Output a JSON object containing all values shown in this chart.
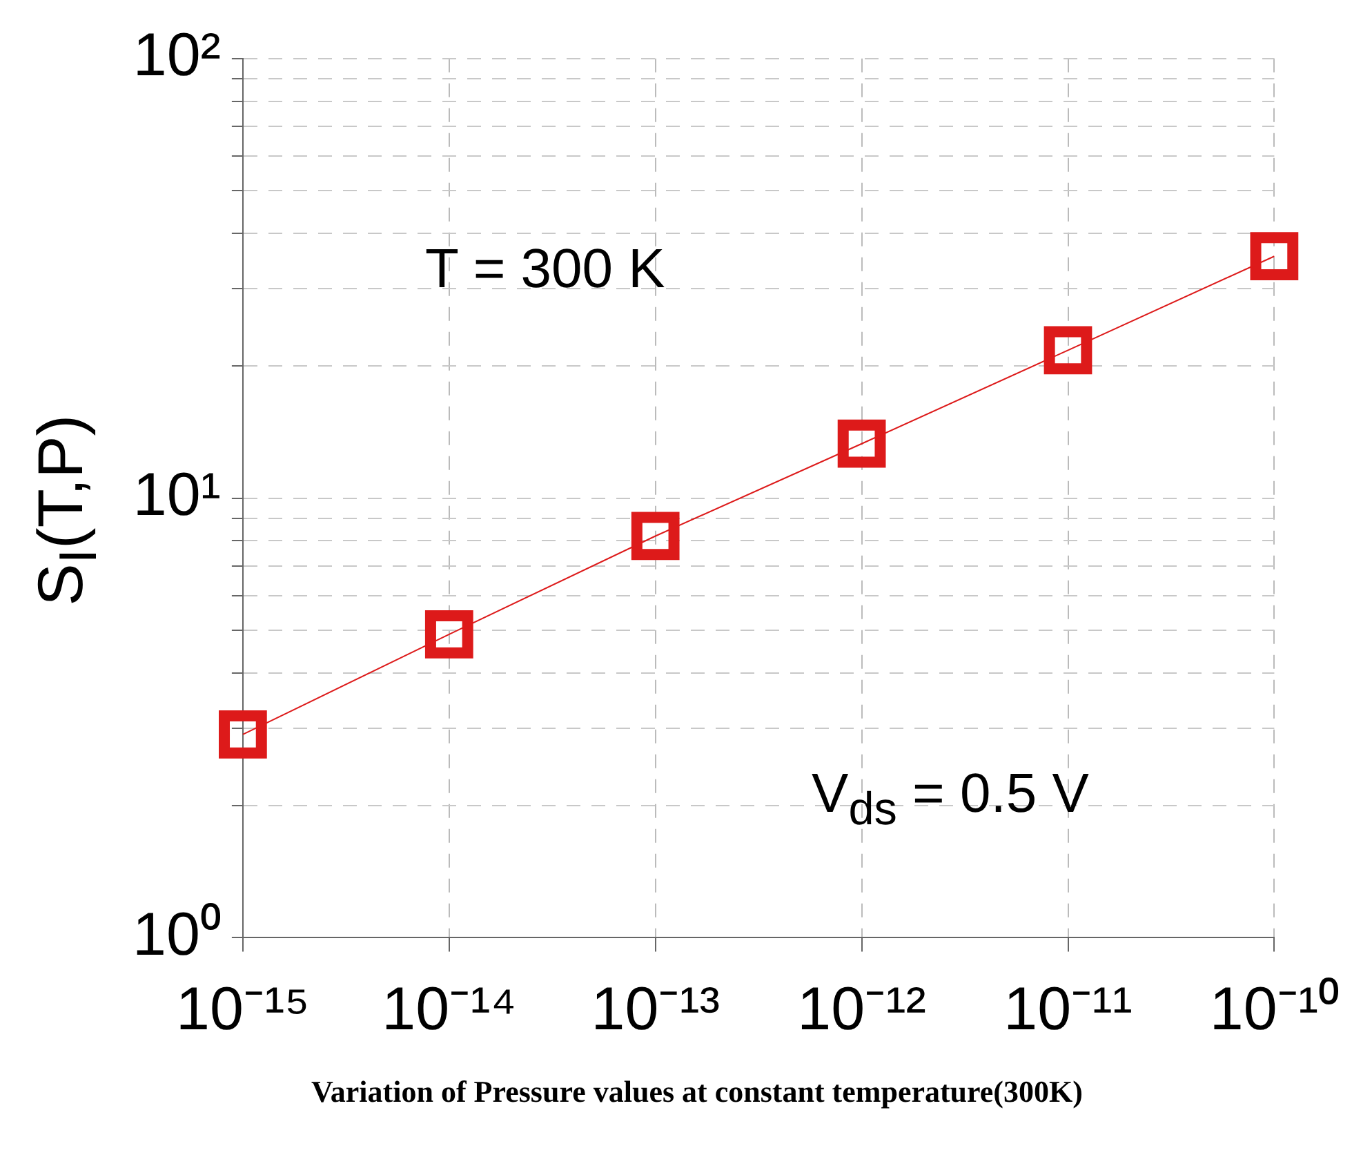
{
  "chart_data": {
    "type": "line",
    "xlabel": "Variation of Pressure values at constant temperature(300K)",
    "ylabel": "S$_{I}$(T,P)",
    "annotations": [
      "T = 300 K",
      "V$_{ds}$ = 0.5 V"
    ],
    "x": [
      1e-15,
      1e-14,
      1e-13,
      1e-12,
      1e-11,
      1e-10
    ],
    "series": [
      {
        "color": "#dd1a1a",
        "values": [
          2.9,
          4.9,
          8.2,
          13.3,
          21.7,
          35.5
        ]
      }
    ],
    "log": "xy",
    "marker": "square",
    "line_style": "solid",
    "grid": true,
    "legend": false,
    "xlim": [
      1e-15,
      1e-10
    ],
    "xticks": [
      {
        "value": 1e-15,
        "label": "10⁻¹⁵"
      },
      {
        "value": 1e-14,
        "label": "10⁻¹⁴"
      },
      {
        "value": 1e-13,
        "label": "10⁻¹³"
      },
      {
        "value": 1e-12,
        "label": "10⁻¹²"
      },
      {
        "value": 1e-11,
        "label": "10⁻¹¹"
      },
      {
        "value": 1e-10,
        "label": "10⁻¹⁰"
      }
    ],
    "ylim": [
      1,
      100
    ],
    "yticks": [
      {
        "value": 1,
        "label": "10⁰"
      },
      {
        "value": 2,
        "label": null
      },
      {
        "value": 3,
        "label": null
      },
      {
        "value": 4,
        "label": null
      },
      {
        "value": 5,
        "label": null
      },
      {
        "value": 6,
        "label": null
      },
      {
        "value": 7,
        "label": null
      },
      {
        "value": 8,
        "label": null
      },
      {
        "value": 9,
        "label": null
      },
      {
        "value": 10,
        "label": "10¹"
      },
      {
        "value": 20,
        "label": null
      },
      {
        "value": 30,
        "label": null
      },
      {
        "value": 40,
        "label": null
      },
      {
        "value": 50,
        "label": null
      },
      {
        "value": 60,
        "label": null
      },
      {
        "value": 70,
        "label": null
      },
      {
        "value": 80,
        "label": null
      },
      {
        "value": 90,
        "label": null
      },
      {
        "value": 100,
        "label": "10²"
      }
    ]
  }
}
